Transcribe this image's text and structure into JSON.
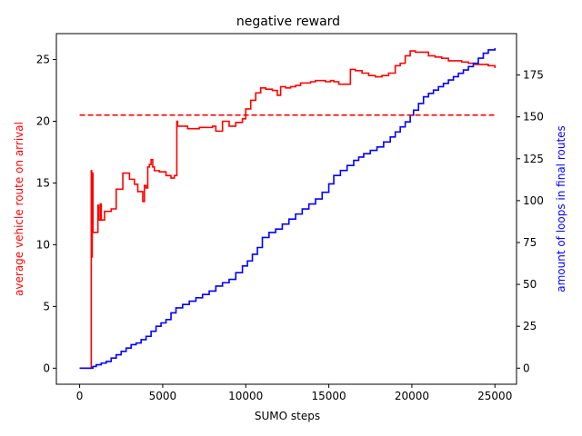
{
  "chart_data": {
    "type": "line",
    "title": "negative reward",
    "xlabel": "SUMO steps",
    "ylabel_left": "average vehicle route on arrival",
    "ylabel_right": "amount of loops in final routes",
    "xlim": [
      -1400,
      26300
    ],
    "ylim_left": [
      -1.3,
      27.1
    ],
    "ylim_right": [
      -9.6,
      199.7
    ],
    "x_ticks": [
      0,
      5000,
      10000,
      15000,
      20000,
      25000
    ],
    "y_left_ticks": [
      0,
      5,
      10,
      15,
      20,
      25
    ],
    "y_right_ticks": [
      0,
      25,
      50,
      75,
      100,
      125,
      150,
      175
    ],
    "colors": {
      "left_series": "#ff0000",
      "right_series": "#0000ff",
      "frame": "#000000"
    },
    "series": [
      {
        "axis": "left",
        "style": "step",
        "color": "#ff0000",
        "x": [
          0,
          700,
          720,
          760,
          800,
          840,
          1000,
          1100,
          1150,
          1250,
          1300,
          1400,
          1500,
          1900,
          2200,
          2500,
          2600,
          2700,
          3000,
          3300,
          3500,
          3700,
          3800,
          3900,
          4000,
          4100,
          4200,
          4300,
          4400,
          4500,
          4800,
          5200,
          5500,
          5700,
          5850,
          5900,
          6200,
          6500,
          6800,
          7200,
          7600,
          8000,
          8200,
          8400,
          8600,
          9000,
          9400,
          9800,
          10000,
          10300,
          10600,
          10900,
          11200,
          11600,
          11900,
          12100,
          12400,
          12700,
          13000,
          13300,
          13600,
          13900,
          14200,
          14500,
          14800,
          15100,
          15300,
          15600,
          15900,
          16300,
          16600,
          17000,
          17400,
          17800,
          18200,
          18600,
          19000,
          19300,
          19600,
          19900,
          20200,
          20600,
          21000,
          21400,
          21800,
          22200,
          22600,
          23000,
          23400,
          23800,
          24200,
          24600,
          25000
        ],
        "y": [
          0,
          16.0,
          9.0,
          15.8,
          11.0,
          11.0,
          11.0,
          13.2,
          12.0,
          13.3,
          12.0,
          12.0,
          12.7,
          12.9,
          14.5,
          14.5,
          15.8,
          15.8,
          15.3,
          14.9,
          14.3,
          14.3,
          13.5,
          14.8,
          14.6,
          16.3,
          16.5,
          16.9,
          16.3,
          16.0,
          15.9,
          15.6,
          15.4,
          15.6,
          20.0,
          19.6,
          19.6,
          19.4,
          19.4,
          19.5,
          19.5,
          19.6,
          19.2,
          19.2,
          20.0,
          19.6,
          19.9,
          20.2,
          21.0,
          21.7,
          22.3,
          22.7,
          22.6,
          22.5,
          22.1,
          22.8,
          22.7,
          22.8,
          22.9,
          23.1,
          23.1,
          23.2,
          23.3,
          23.3,
          23.2,
          23.3,
          23.2,
          23.0,
          23.0,
          24.2,
          24.1,
          23.9,
          23.7,
          23.6,
          23.7,
          23.9,
          24.5,
          24.7,
          25.3,
          25.7,
          25.6,
          25.6,
          25.3,
          25.2,
          25.1,
          24.9,
          24.9,
          24.8,
          24.7,
          24.6,
          24.6,
          24.5,
          24.3
        ]
      },
      {
        "axis": "right",
        "style": "step",
        "color": "#0000ff",
        "x": [
          0,
          800,
          1000,
          1300,
          1600,
          1900,
          2200,
          2500,
          2800,
          3100,
          3400,
          3700,
          4000,
          4300,
          4600,
          4900,
          5200,
          5500,
          5800,
          6200,
          6600,
          7000,
          7400,
          7800,
          8200,
          8600,
          9000,
          9400,
          9800,
          10100,
          10400,
          10700,
          11000,
          11400,
          11800,
          12200,
          12600,
          13000,
          13400,
          13800,
          14200,
          14600,
          15000,
          15300,
          15700,
          16100,
          16500,
          16800,
          17100,
          17500,
          17900,
          18300,
          18700,
          19000,
          19300,
          19600,
          19900,
          20100,
          20400,
          20700,
          21000,
          21300,
          21600,
          21900,
          22200,
          22500,
          22800,
          23100,
          23400,
          23700,
          24000,
          24300,
          24600,
          25000
        ],
        "y": [
          0,
          1,
          2,
          3,
          4,
          6,
          8,
          10,
          12,
          14,
          15,
          17,
          19,
          22,
          25,
          27,
          29,
          33,
          36,
          38,
          40,
          42,
          44,
          46,
          49,
          51,
          53,
          57,
          61,
          64,
          68,
          72,
          78,
          81,
          83,
          86,
          89,
          92,
          95,
          98,
          101,
          105,
          110,
          115,
          118,
          121,
          124,
          126,
          128,
          130,
          132,
          135,
          138,
          141,
          144,
          147,
          151,
          154,
          158,
          162,
          164,
          166,
          168,
          170,
          172,
          174,
          176,
          178,
          180,
          182,
          185,
          188,
          190,
          191
        ]
      },
      {
        "axis": "left",
        "style": "dashed",
        "color": "#ff0000",
        "x": [
          0,
          25000
        ],
        "y": [
          20.5,
          20.5
        ]
      }
    ]
  }
}
